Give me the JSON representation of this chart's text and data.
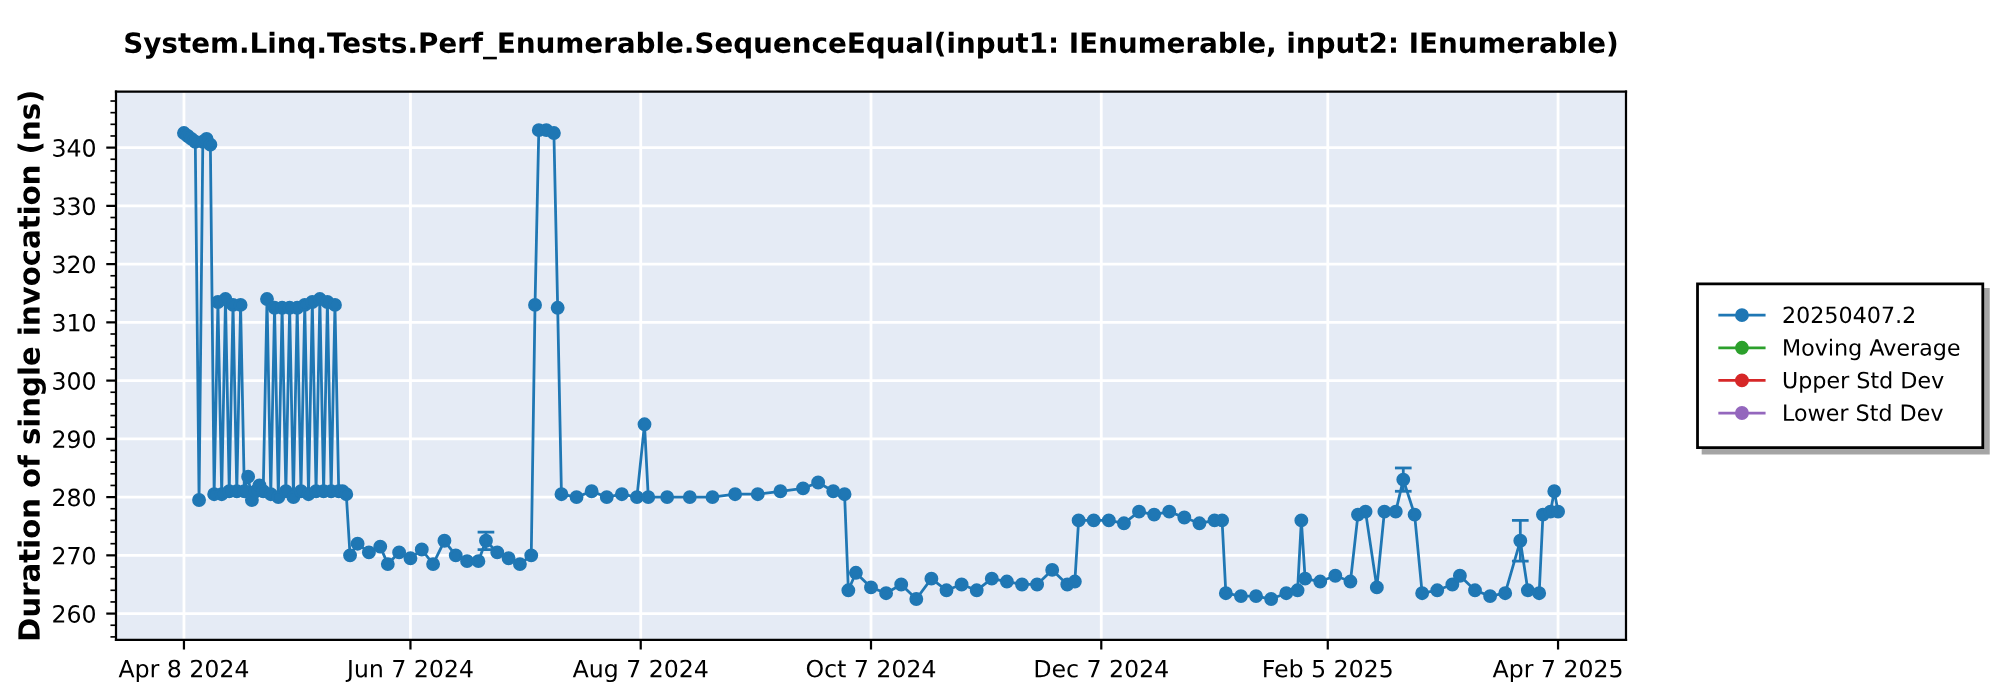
{
  "chart_data": {
    "type": "line",
    "title": "System.Linq.Tests.Perf_Enumerable.SequenceEqual(input1: IEnumerable, input2: IEnumerable)",
    "ylabel": "Duration of single invocation (ns)",
    "x": [
      "2024-04-08",
      "2024-04-09",
      "2024-04-10",
      "2024-04-11",
      "2024-04-12",
      "2024-04-13",
      "2024-04-14",
      "2024-04-15",
      "2024-04-16",
      "2024-04-17",
      "2024-04-18",
      "2024-04-19",
      "2024-04-20",
      "2024-04-21",
      "2024-04-22",
      "2024-04-23",
      "2024-04-24",
      "2024-04-25",
      "2024-04-26",
      "2024-04-27",
      "2024-04-28",
      "2024-04-29",
      "2024-04-30",
      "2024-05-01",
      "2024-05-02",
      "2024-05-03",
      "2024-05-04",
      "2024-05-05",
      "2024-05-06",
      "2024-05-07",
      "2024-05-08",
      "2024-05-09",
      "2024-05-10",
      "2024-05-11",
      "2024-05-12",
      "2024-05-13",
      "2024-05-14",
      "2024-05-15",
      "2024-05-16",
      "2024-05-17",
      "2024-05-18",
      "2024-05-19",
      "2024-05-20",
      "2024-05-21",
      "2024-05-22",
      "2024-05-24",
      "2024-05-27",
      "2024-05-30",
      "2024-06-01",
      "2024-06-04",
      "2024-06-07",
      "2024-06-10",
      "2024-06-13",
      "2024-06-16",
      "2024-06-19",
      "2024-06-22",
      "2024-06-25",
      "2024-06-27",
      "2024-06-30",
      "2024-07-03",
      "2024-07-06",
      "2024-07-09",
      "2024-07-10",
      "2024-07-11",
      "2024-07-13",
      "2024-07-15",
      "2024-07-16",
      "2024-07-17",
      "2024-07-21",
      "2024-07-25",
      "2024-07-29",
      "2024-08-02",
      "2024-08-06",
      "2024-08-08",
      "2024-08-09",
      "2024-08-14",
      "2024-08-20",
      "2024-08-26",
      "2024-09-01",
      "2024-09-07",
      "2024-09-13",
      "2024-09-19",
      "2024-09-23",
      "2024-09-27",
      "2024-09-30",
      "2024-10-01",
      "2024-10-03",
      "2024-10-07",
      "2024-10-11",
      "2024-10-15",
      "2024-10-19",
      "2024-10-23",
      "2024-10-27",
      "2024-10-31",
      "2024-11-04",
      "2024-11-08",
      "2024-11-12",
      "2024-11-16",
      "2024-11-20",
      "2024-11-24",
      "2024-11-28",
      "2024-11-30",
      "2024-12-01",
      "2024-12-05",
      "2024-12-09",
      "2024-12-13",
      "2024-12-17",
      "2024-12-21",
      "2024-12-25",
      "2024-12-29",
      "2025-01-02",
      "2025-01-06",
      "2025-01-08",
      "2025-01-09",
      "2025-01-13",
      "2025-01-17",
      "2025-01-21",
      "2025-01-25",
      "2025-01-28",
      "2025-01-29",
      "2025-01-30",
      "2025-02-03",
      "2025-02-07",
      "2025-02-11",
      "2025-02-13",
      "2025-02-15",
      "2025-02-18",
      "2025-02-20",
      "2025-02-23",
      "2025-02-25",
      "2025-02-28",
      "2025-03-02",
      "2025-03-06",
      "2025-03-10",
      "2025-03-12",
      "2025-03-16",
      "2025-03-20",
      "2025-03-24",
      "2025-03-28",
      "2025-03-30",
      "2025-04-02",
      "2025-04-03",
      "2025-04-05",
      "2025-04-06",
      "2025-04-07"
    ],
    "series": [
      {
        "name": "20250407.2",
        "color": "#1f77b4",
        "values": [
          342.5,
          342,
          341.5,
          341,
          279.5,
          341,
          341.5,
          340.5,
          280.5,
          313.5,
          280.5,
          314,
          281,
          313,
          281,
          313,
          281,
          283.5,
          279.5,
          281,
          282,
          281,
          314,
          280.5,
          312.5,
          280,
          312.5,
          281,
          312.5,
          280,
          312.5,
          281,
          313,
          280.5,
          313.5,
          281,
          314,
          281,
          313.5,
          281,
          313,
          281,
          281,
          280.5,
          270,
          272,
          270.5,
          271.5,
          268.5,
          270.5,
          269.5,
          271,
          268.5,
          272.5,
          270,
          269,
          269,
          272.5,
          270.5,
          269.5,
          268.5,
          270,
          313,
          343,
          343,
          342.5,
          312.5,
          280.5,
          280,
          281,
          280,
          280.5,
          280,
          292.5,
          280,
          280,
          280,
          280,
          280.5,
          280.5,
          281,
          281.5,
          282.5,
          281,
          280.5,
          264,
          267,
          264.5,
          263.5,
          265,
          262.5,
          266,
          264,
          265,
          264,
          266,
          265.5,
          265,
          265,
          267.5,
          265,
          265.5,
          276,
          276,
          276,
          275.5,
          277.5,
          277,
          277.5,
          276.5,
          275.5,
          276,
          276,
          263.5,
          263,
          263,
          262.5,
          263.5,
          264,
          276,
          266,
          265.5,
          266.5,
          265.5,
          277,
          277.5,
          264.5,
          277.5,
          277.5,
          283,
          277,
          263.5,
          264,
          265,
          266.5,
          264,
          263,
          263.5,
          272.5,
          264,
          263.5,
          277,
          277.5,
          281,
          277.5
        ],
        "errors": [
          null,
          null,
          null,
          null,
          null,
          null,
          null,
          null,
          null,
          null,
          null,
          null,
          null,
          null,
          null,
          null,
          null,
          null,
          null,
          null,
          null,
          null,
          null,
          null,
          null,
          null,
          null,
          null,
          null,
          null,
          null,
          null,
          null,
          null,
          null,
          null,
          null,
          null,
          null,
          null,
          null,
          null,
          null,
          null,
          null,
          null,
          null,
          null,
          null,
          null,
          null,
          null,
          null,
          null,
          null,
          null,
          null,
          1.5,
          null,
          null,
          null,
          null,
          null,
          null,
          null,
          null,
          null,
          null,
          null,
          null,
          null,
          null,
          null,
          null,
          null,
          null,
          null,
          null,
          null,
          null,
          null,
          null,
          null,
          null,
          null,
          null,
          null,
          null,
          null,
          null,
          null,
          null,
          null,
          null,
          null,
          null,
          null,
          null,
          null,
          null,
          null,
          null,
          null,
          null,
          null,
          null,
          null,
          null,
          null,
          null,
          null,
          null,
          null,
          null,
          null,
          null,
          null,
          null,
          null,
          null,
          null,
          null,
          null,
          null,
          null,
          null,
          null,
          null,
          null,
          2,
          null,
          null,
          null,
          null,
          null,
          null,
          null,
          null,
          3.5,
          null,
          null,
          null,
          null,
          null,
          null
        ]
      },
      {
        "name": "Moving Average",
        "color": "#2ca02c",
        "values": [
          null,
          null,
          null,
          null,
          null,
          null,
          null,
          null,
          null,
          null,
          null,
          null,
          null,
          null,
          null,
          null,
          null,
          null,
          null,
          null,
          null,
          null,
          null,
          null,
          null,
          null,
          null,
          null,
          null,
          null,
          null,
          null,
          null,
          null,
          null,
          null,
          null,
          null,
          null,
          null,
          null,
          null,
          null,
          null,
          null,
          null,
          null,
          null,
          null,
          null,
          null,
          null,
          null,
          null,
          null,
          null,
          null,
          null,
          null,
          null,
          null,
          null,
          null,
          null,
          null,
          null,
          null,
          null,
          null,
          null,
          null,
          null,
          null,
          null,
          null,
          null,
          null,
          null,
          null,
          null,
          null,
          null,
          null,
          null,
          null,
          null,
          null,
          null,
          null,
          null,
          null,
          null,
          null,
          null,
          null,
          null,
          null,
          null,
          null,
          null,
          null,
          null,
          null,
          null,
          null,
          null,
          null,
          null,
          null,
          null,
          null,
          null,
          null,
          null,
          null,
          null,
          null,
          null,
          null,
          null,
          null,
          null,
          null,
          null,
          null,
          null,
          null,
          null,
          null,
          null,
          null,
          null,
          null,
          null,
          null,
          null,
          null,
          null,
          null,
          null,
          null,
          null,
          null,
          null,
          null
        ]
      },
      {
        "name": "Upper Std Dev",
        "color": "#d62728",
        "values": [
          null,
          null,
          null,
          null,
          null,
          null,
          null,
          null,
          null,
          null,
          null,
          null,
          null,
          null,
          null,
          null,
          null,
          null,
          null,
          null,
          null,
          null,
          null,
          null,
          null,
          null,
          null,
          null,
          null,
          null,
          null,
          null,
          null,
          null,
          null,
          null,
          null,
          null,
          null,
          null,
          null,
          null,
          null,
          null,
          null,
          null,
          null,
          null,
          null,
          null,
          null,
          null,
          null,
          null,
          null,
          null,
          null,
          null,
          null,
          null,
          null,
          null,
          null,
          null,
          null,
          null,
          null,
          null,
          null,
          null,
          null,
          null,
          null,
          null,
          null,
          null,
          null,
          null,
          null,
          null,
          null,
          null,
          null,
          null,
          null,
          null,
          null,
          null,
          null,
          null,
          null,
          null,
          null,
          null,
          null,
          null,
          null,
          null,
          null,
          null,
          null,
          null,
          null,
          null,
          null,
          null,
          null,
          null,
          null,
          null,
          null,
          null,
          null,
          null,
          null,
          null,
          null,
          null,
          null,
          null,
          null,
          null,
          null,
          null,
          null,
          null,
          null,
          null,
          null,
          null,
          null,
          null,
          null,
          null,
          null,
          null,
          null,
          null,
          null,
          null,
          null,
          null,
          null,
          null,
          null
        ]
      },
      {
        "name": "Lower Std Dev",
        "color": "#9467bd",
        "values": [
          null,
          null,
          null,
          null,
          null,
          null,
          null,
          null,
          null,
          null,
          null,
          null,
          null,
          null,
          null,
          null,
          null,
          null,
          null,
          null,
          null,
          null,
          null,
          null,
          null,
          null,
          null,
          null,
          null,
          null,
          null,
          null,
          null,
          null,
          null,
          null,
          null,
          null,
          null,
          null,
          null,
          null,
          null,
          null,
          null,
          null,
          null,
          null,
          null,
          null,
          null,
          null,
          null,
          null,
          null,
          null,
          null,
          null,
          null,
          null,
          null,
          null,
          null,
          null,
          null,
          null,
          null,
          null,
          null,
          null,
          null,
          null,
          null,
          null,
          null,
          null,
          null,
          null,
          null,
          null,
          null,
          null,
          null,
          null,
          null,
          null,
          null,
          null,
          null,
          null,
          null,
          null,
          null,
          null,
          null,
          null,
          null,
          null,
          null,
          null,
          null,
          null,
          null,
          null,
          null,
          null,
          null,
          null,
          null,
          null,
          null,
          null,
          null,
          null,
          null,
          null,
          null,
          null,
          null,
          null,
          null,
          null,
          null,
          null,
          null,
          null,
          null,
          null,
          null,
          null,
          null,
          null,
          null,
          null,
          null,
          null,
          null,
          null,
          null,
          null,
          null,
          null,
          null,
          null,
          null
        ]
      }
    ],
    "xlim": [
      "2024-03-21",
      "2025-04-25"
    ],
    "xticks": [
      {
        "value": "2024-04-08",
        "label": "Apr 8 2024"
      },
      {
        "value": "2024-06-07",
        "label": "Jun 7 2024"
      },
      {
        "value": "2024-08-07",
        "label": "Aug 7 2024"
      },
      {
        "value": "2024-10-07",
        "label": "Oct 7 2024"
      },
      {
        "value": "2024-12-07",
        "label": "Dec 7 2024"
      },
      {
        "value": "2025-02-05",
        "label": "Feb 5 2025"
      },
      {
        "value": "2025-04-07",
        "label": "Apr 7 2025"
      }
    ],
    "ylim": [
      255.5,
      349.6
    ],
    "yticks": [
      260,
      270,
      280,
      290,
      300,
      310,
      320,
      330,
      340
    ],
    "grid": true,
    "legend": "right",
    "marker": "circle",
    "line_style": "solid"
  }
}
